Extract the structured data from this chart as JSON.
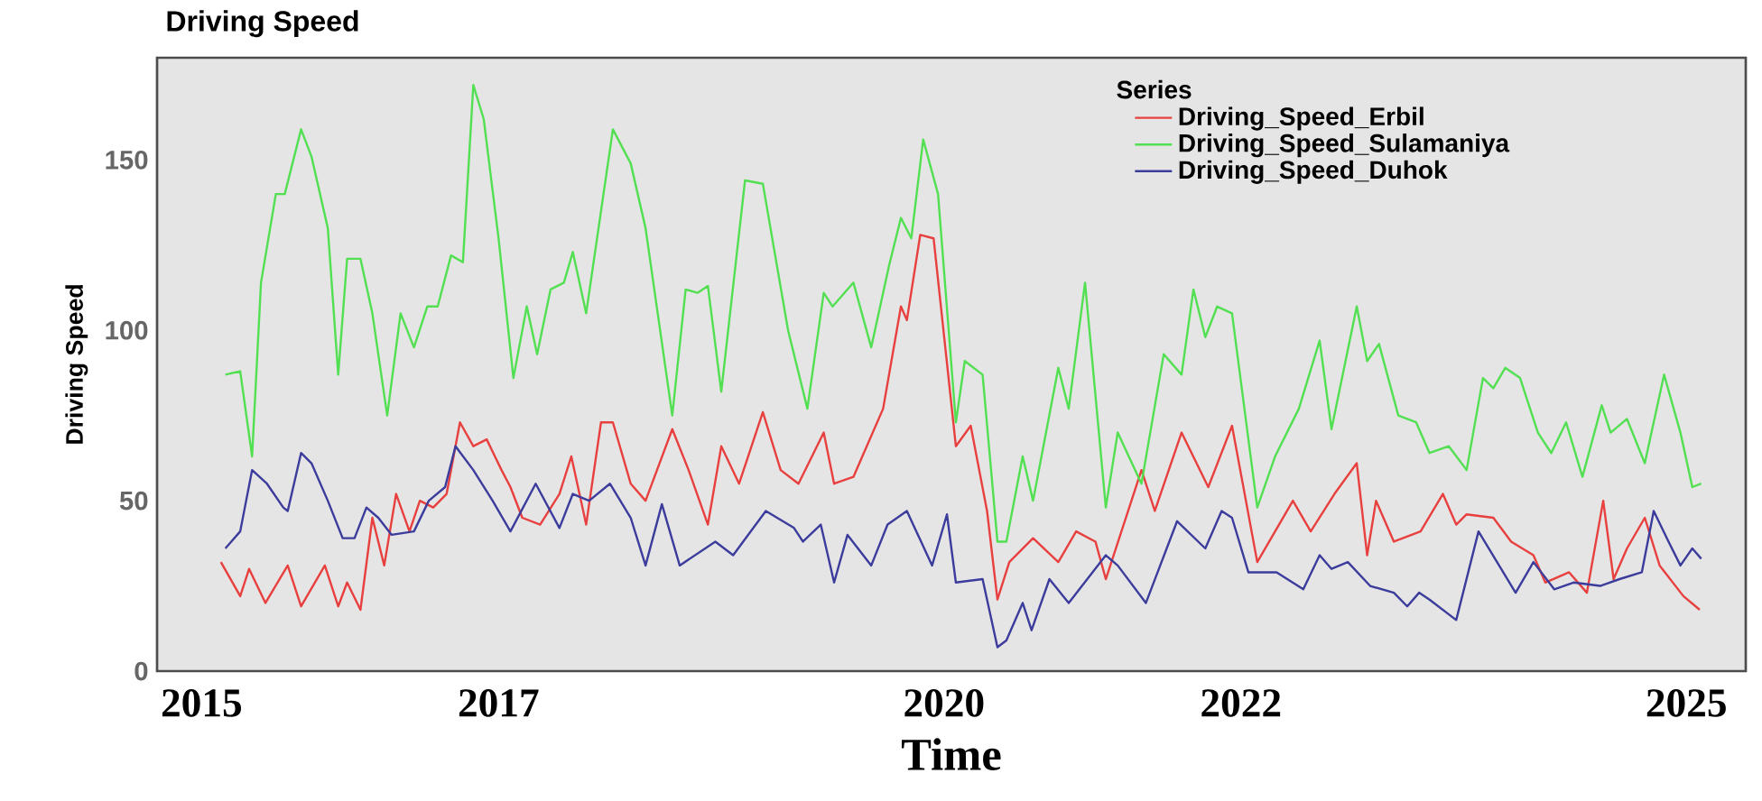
{
  "chart_data": {
    "type": "line",
    "title": "Driving Speed",
    "xlabel": "Time",
    "ylabel": "Driving Speed",
    "legend_title": "Series",
    "legend": "top right",
    "xlim": [
      2014.7,
      2025.4
    ],
    "ylim": [
      0,
      180
    ],
    "xticks": [
      2015,
      2017,
      2020,
      2022,
      2025
    ],
    "yticks": [
      0,
      50,
      100,
      150
    ],
    "grid": false,
    "series": [
      {
        "name": "Driving_Speed_Erbil",
        "color": "#e8403f",
        "x": [
          2015.13,
          2015.26,
          2015.32,
          2015.43,
          2015.58,
          2015.67,
          2015.83,
          2015.92,
          2015.98,
          2016.07,
          2016.15,
          2016.23,
          2016.31,
          2016.4,
          2016.47,
          2016.56,
          2016.65,
          2016.74,
          2016.83,
          2016.92,
          2017.02,
          2017.08,
          2017.16,
          2017.28,
          2017.41,
          2017.49,
          2017.59,
          2017.69,
          2017.77,
          2017.89,
          2017.99,
          2018.17,
          2018.28,
          2018.41,
          2018.5,
          2018.62,
          2018.78,
          2018.9,
          2019.02,
          2019.19,
          2019.26,
          2019.39,
          2019.59,
          2019.71,
          2019.75,
          2019.84,
          2019.93,
          2020.08,
          2020.18,
          2020.29,
          2020.36,
          2020.44,
          2020.6,
          2020.77,
          2020.89,
          2021.02,
          2021.09,
          2021.21,
          2021.33,
          2021.42,
          2021.6,
          2021.78,
          2021.94,
          2022.11,
          2022.35,
          2022.47,
          2022.63,
          2022.78,
          2022.85,
          2022.91,
          2023.03,
          2023.21,
          2023.36,
          2023.45,
          2023.52,
          2023.7,
          2023.82,
          2023.97,
          2024.05,
          2024.21,
          2024.33,
          2024.44,
          2024.51,
          2024.6,
          2024.72,
          2024.82,
          2024.98,
          2025.09
        ],
        "values": [
          32,
          22,
          30,
          20,
          31,
          19,
          31,
          19,
          26,
          18,
          45,
          31,
          52,
          41,
          50,
          48,
          52,
          73,
          66,
          68,
          59,
          54,
          45,
          43,
          52,
          63,
          43,
          73,
          73,
          55,
          50,
          71,
          59,
          43,
          66,
          55,
          76,
          59,
          55,
          70,
          55,
          57,
          77,
          107,
          103,
          128,
          127,
          66,
          72,
          47,
          21,
          32,
          39,
          32,
          41,
          38,
          27,
          43,
          59,
          47,
          70,
          54,
          72,
          32,
          50,
          41,
          52,
          61,
          34,
          50,
          38,
          41,
          52,
          43,
          46,
          45,
          38,
          34,
          26,
          29,
          23,
          50,
          27,
          36,
          45,
          31,
          22,
          18
        ]
      },
      {
        "name": "Driving_Speed_Sulamaniya",
        "color": "#52e052",
        "x": [
          2015.16,
          2015.26,
          2015.34,
          2015.4,
          2015.5,
          2015.56,
          2015.67,
          2015.74,
          2015.85,
          2015.92,
          2015.98,
          2016.07,
          2016.15,
          2016.25,
          2016.34,
          2016.43,
          2016.52,
          2016.59,
          2016.68,
          2016.76,
          2016.83,
          2016.9,
          2017.0,
          2017.1,
          2017.19,
          2017.26,
          2017.35,
          2017.44,
          2017.5,
          2017.59,
          2017.77,
          2017.89,
          2017.99,
          2018.17,
          2018.26,
          2018.34,
          2018.41,
          2018.5,
          2018.66,
          2018.78,
          2018.95,
          2019.08,
          2019.19,
          2019.25,
          2019.39,
          2019.51,
          2019.63,
          2019.71,
          2019.78,
          2019.86,
          2019.96,
          2020.08,
          2020.14,
          2020.26,
          2020.36,
          2020.42,
          2020.53,
          2020.6,
          2020.77,
          2020.84,
          2020.95,
          2021.09,
          2021.17,
          2021.33,
          2021.48,
          2021.6,
          2021.68,
          2021.76,
          2021.84,
          2021.94,
          2022.11,
          2022.23,
          2022.39,
          2022.53,
          2022.61,
          2022.78,
          2022.85,
          2022.93,
          2023.06,
          2023.18,
          2023.27,
          2023.4,
          2023.52,
          2023.63,
          2023.7,
          2023.78,
          2023.88,
          2024.0,
          2024.09,
          2024.19,
          2024.3,
          2024.43,
          2024.49,
          2024.6,
          2024.72,
          2024.85,
          2024.96,
          2025.04,
          2025.1
        ],
        "values": [
          87,
          88,
          63,
          114,
          140,
          140,
          159,
          151,
          130,
          87,
          121,
          121,
          105,
          75,
          105,
          95,
          107,
          107,
          122,
          120,
          172,
          162,
          127,
          86,
          107,
          93,
          112,
          114,
          123,
          105,
          159,
          149,
          130,
          75,
          112,
          111,
          113,
          82,
          144,
          143,
          100,
          77,
          111,
          107,
          114,
          95,
          119,
          133,
          127,
          156,
          140,
          73,
          91,
          87,
          38,
          38,
          63,
          50,
          89,
          77,
          114,
          48,
          70,
          55,
          93,
          87,
          112,
          98,
          107,
          105,
          48,
          63,
          77,
          97,
          71,
          107,
          91,
          96,
          75,
          73,
          64,
          66,
          59,
          86,
          83,
          89,
          86,
          70,
          64,
          73,
          57,
          78,
          70,
          74,
          61,
          87,
          70,
          54,
          55
        ]
      },
      {
        "name": "Driving_Speed_Duhok",
        "color": "#3c3c9c",
        "x": [
          2015.16,
          2015.26,
          2015.34,
          2015.44,
          2015.55,
          2015.58,
          2015.67,
          2015.74,
          2015.85,
          2015.95,
          2016.03,
          2016.11,
          2016.19,
          2016.28,
          2016.43,
          2016.53,
          2016.64,
          2016.71,
          2016.83,
          2016.96,
          2017.08,
          2017.25,
          2017.41,
          2017.5,
          2017.61,
          2017.75,
          2017.89,
          2017.99,
          2018.1,
          2018.22,
          2018.46,
          2018.58,
          2018.8,
          2018.99,
          2019.05,
          2019.17,
          2019.26,
          2019.35,
          2019.51,
          2019.62,
          2019.75,
          2019.92,
          2020.02,
          2020.08,
          2020.26,
          2020.36,
          2020.42,
          2020.53,
          2020.59,
          2020.71,
          2020.84,
          2021.09,
          2021.17,
          2021.36,
          2021.57,
          2021.76,
          2021.87,
          2021.94,
          2022.05,
          2022.24,
          2022.42,
          2022.53,
          2022.61,
          2022.72,
          2022.87,
          2023.03,
          2023.12,
          2023.2,
          2023.27,
          2023.45,
          2023.6,
          2023.85,
          2023.97,
          2024.11,
          2024.24,
          2024.42,
          2024.55,
          2024.7,
          2024.78,
          2024.88,
          2024.96,
          2025.04,
          2025.1
        ],
        "values": [
          36,
          41,
          59,
          55,
          48,
          47,
          64,
          61,
          50,
          39,
          39,
          48,
          45,
          40,
          41,
          50,
          54,
          66,
          59,
          50,
          41,
          55,
          42,
          52,
          50,
          55,
          45,
          31,
          49,
          31,
          38,
          34,
          47,
          42,
          38,
          43,
          26,
          40,
          31,
          43,
          47,
          31,
          46,
          26,
          27,
          7,
          9,
          20,
          12,
          27,
          20,
          34,
          31,
          20,
          44,
          36,
          47,
          45,
          29,
          29,
          24,
          34,
          30,
          32,
          25,
          23,
          19,
          23,
          21,
          15,
          41,
          23,
          32,
          24,
          26,
          25,
          27,
          29,
          47,
          38,
          31,
          36,
          33
        ]
      }
    ]
  }
}
